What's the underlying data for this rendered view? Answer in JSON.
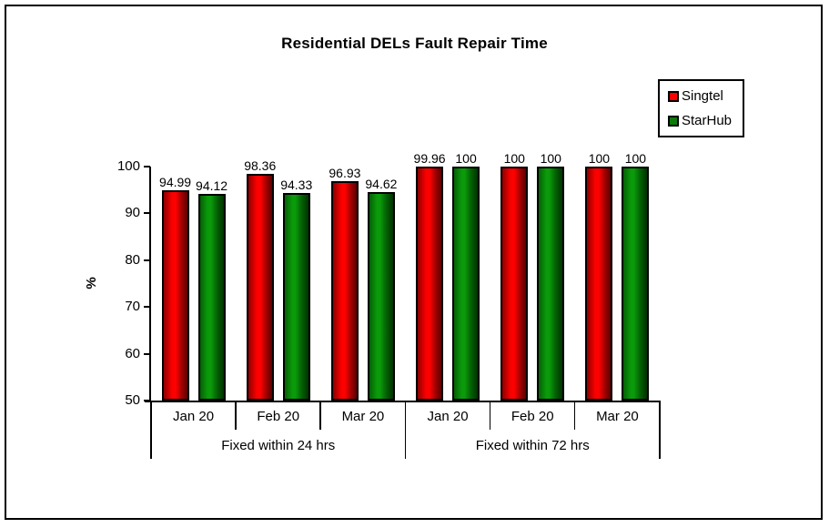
{
  "chart_data": {
    "type": "bar",
    "title": "Residential DELs Fault Repair Time",
    "xlabel": "",
    "ylabel": "%",
    "ylim": [
      50,
      100
    ],
    "yticks": [
      50,
      60,
      70,
      80,
      90,
      100
    ],
    "grid": "off",
    "legend_position": "top-right",
    "groups": [
      {
        "label": "Fixed within 24 hrs",
        "categories": [
          "Jan 20",
          "Feb 20",
          "Mar 20"
        ]
      },
      {
        "label": "Fixed within 72 hrs",
        "categories": [
          "Jan 20",
          "Feb 20",
          "Mar 20"
        ]
      }
    ],
    "series": [
      {
        "name": "Singtel",
        "color": "#ff0000",
        "values": [
          94.99,
          98.36,
          96.93,
          99.96,
          100,
          100
        ],
        "data_labels": [
          "94.99",
          "98.36",
          "96.93",
          "99.96",
          "100",
          "100"
        ]
      },
      {
        "name": "StarHub",
        "color": "#0a7a0a",
        "values": [
          94.12,
          94.33,
          94.62,
          100,
          100,
          100
        ],
        "data_labels": [
          "94.12",
          "94.33",
          "94.62",
          "100",
          "100",
          "100"
        ]
      }
    ]
  },
  "colors": {
    "singtel_red": "#ff0000",
    "starhub_green": "#0a7a0a",
    "axis_black": "#000000",
    "background": "#ffffff"
  }
}
